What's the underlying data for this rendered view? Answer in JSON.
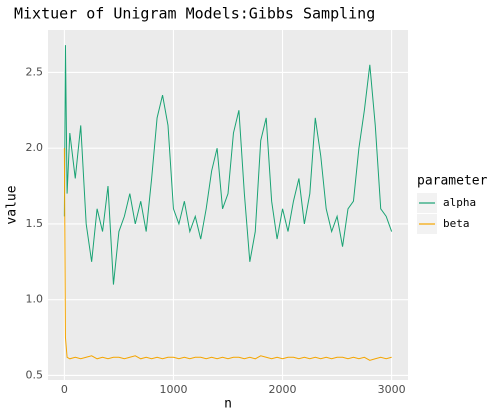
{
  "chart_data": {
    "type": "line",
    "title": "Mixtuer of Unigram Models:Gibbs Sampling",
    "x_label": "n",
    "y_label": "value",
    "legend_title": "parameter",
    "legend": "right",
    "grid": true,
    "x": [
      0,
      10,
      25,
      50,
      100,
      150,
      200,
      250,
      300,
      350,
      400,
      450,
      500,
      550,
      600,
      650,
      700,
      750,
      800,
      850,
      900,
      950,
      1000,
      1050,
      1100,
      1150,
      1200,
      1250,
      1300,
      1350,
      1400,
      1450,
      1500,
      1550,
      1600,
      1650,
      1700,
      1750,
      1800,
      1850,
      1900,
      1950,
      2000,
      2050,
      2100,
      2150,
      2200,
      2250,
      2300,
      2350,
      2400,
      2450,
      2500,
      2550,
      2600,
      2650,
      2700,
      2750,
      2800,
      2850,
      2900,
      2950,
      3000
    ],
    "series": [
      {
        "name": "alpha",
        "color": "#1aa374",
        "values": [
          1.55,
          2.68,
          1.7,
          2.1,
          1.8,
          2.15,
          1.5,
          1.25,
          1.6,
          1.45,
          1.75,
          1.1,
          1.45,
          1.55,
          1.7,
          1.5,
          1.65,
          1.45,
          1.8,
          2.2,
          2.35,
          2.15,
          1.6,
          1.5,
          1.65,
          1.45,
          1.55,
          1.4,
          1.6,
          1.85,
          2.0,
          1.6,
          1.7,
          2.1,
          2.25,
          1.7,
          1.25,
          1.45,
          2.05,
          2.2,
          1.65,
          1.4,
          1.6,
          1.45,
          1.65,
          1.8,
          1.5,
          1.7,
          2.2,
          1.95,
          1.6,
          1.45,
          1.55,
          1.35,
          1.6,
          1.65,
          2.0,
          2.25,
          2.55,
          2.15,
          1.6,
          1.55,
          1.45
        ]
      },
      {
        "name": "beta",
        "color": "#f5a500",
        "values": [
          2.0,
          0.75,
          0.62,
          0.61,
          0.62,
          0.61,
          0.62,
          0.63,
          0.61,
          0.62,
          0.61,
          0.62,
          0.62,
          0.61,
          0.62,
          0.63,
          0.61,
          0.62,
          0.61,
          0.62,
          0.61,
          0.62,
          0.62,
          0.61,
          0.62,
          0.61,
          0.62,
          0.62,
          0.61,
          0.62,
          0.61,
          0.62,
          0.61,
          0.62,
          0.62,
          0.61,
          0.62,
          0.61,
          0.63,
          0.62,
          0.61,
          0.62,
          0.61,
          0.62,
          0.62,
          0.61,
          0.62,
          0.61,
          0.62,
          0.61,
          0.62,
          0.61,
          0.62,
          0.62,
          0.61,
          0.62,
          0.61,
          0.62,
          0.6,
          0.61,
          0.62,
          0.61,
          0.62
        ]
      }
    ],
    "xlim": [
      -150,
      3150
    ],
    "xticks": [
      0,
      1000,
      2000,
      3000
    ],
    "ylim": [
      0.47,
      2.78
    ],
    "yticks": [
      0.5,
      {
        "value": 1.0,
        "label": "1.0"
      },
      1.5,
      {
        "value": 2.0,
        "label": "2.0"
      },
      2.5
    ]
  }
}
